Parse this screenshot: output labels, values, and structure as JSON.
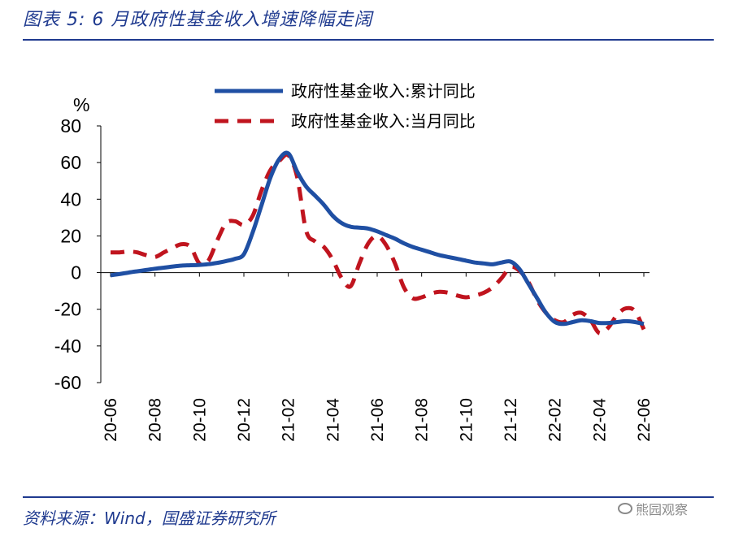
{
  "figure": {
    "title": "图表 5:  6 月政府性基金收入增速降幅走阔",
    "source": "资料来源：Wind，国盛证券研究所",
    "watermark": "熊园观察"
  },
  "colors": {
    "accent": "#1f3a8f",
    "series_cumulative": "#1f4fa3",
    "series_monthly": "#c0141e"
  },
  "chart_data": {
    "type": "line",
    "ylabel": "%",
    "ylim": [
      -60,
      80
    ],
    "yticks": [
      80,
      60,
      40,
      20,
      0,
      -20,
      -40,
      -60
    ],
    "xlim": [
      0,
      24
    ],
    "xticks": [
      {
        "x": 0,
        "label": "20-06"
      },
      {
        "x": 2,
        "label": "20-08"
      },
      {
        "x": 4,
        "label": "20-10"
      },
      {
        "x": 6,
        "label": "20-12"
      },
      {
        "x": 8,
        "label": "21-02"
      },
      {
        "x": 10,
        "label": "21-04"
      },
      {
        "x": 12,
        "label": "21-06"
      },
      {
        "x": 14,
        "label": "21-08"
      },
      {
        "x": 16,
        "label": "21-10"
      },
      {
        "x": 18,
        "label": "21-12"
      },
      {
        "x": 20,
        "label": "22-02"
      },
      {
        "x": 22,
        "label": "22-04"
      },
      {
        "x": 24,
        "label": "22-06"
      }
    ],
    "series": [
      {
        "name": "政府性基金收入:累计同比",
        "style": "solid",
        "x": [
          0,
          0.4,
          0.8,
          1.2,
          1.6,
          2,
          2.4,
          2.8,
          3.2,
          3.6,
          4,
          4.4,
          4.8,
          5.2,
          5.6,
          6,
          6.4,
          6.8,
          7.2,
          7.6,
          8,
          8.4,
          8.8,
          9.2,
          9.6,
          10,
          10.4,
          10.8,
          11.2,
          11.6,
          12,
          12.4,
          12.8,
          13.2,
          13.6,
          14,
          14.4,
          14.8,
          15.2,
          15.6,
          16,
          16.4,
          16.8,
          17.2,
          17.6,
          18,
          18.4,
          18.8,
          19.2,
          19.6,
          20,
          20.4,
          20.8,
          21.2,
          21.6,
          22,
          22.4,
          22.8,
          23.2,
          23.6,
          24
        ],
        "values": [
          -1.5,
          -0.8,
          0,
          0.7,
          1.4,
          2.1,
          2.7,
          3.3,
          3.8,
          4,
          4.2,
          4.6,
          5.3,
          6.3,
          7.5,
          10,
          22,
          37,
          52,
          62,
          65,
          55,
          47,
          42,
          37,
          31,
          27,
          25,
          24.5,
          24,
          22.5,
          20.5,
          18.5,
          16,
          14,
          12.5,
          11,
          9.5,
          8.5,
          7.5,
          6.5,
          5.5,
          5,
          4.5,
          5.5,
          6,
          2,
          -6,
          -14,
          -22,
          -27,
          -28,
          -27,
          -26,
          -26.5,
          -27.5,
          -27.5,
          -27,
          -26.5,
          -27,
          -28
        ]
      },
      {
        "name": "政府性基金收入:当月同比",
        "style": "dashed",
        "x": [
          0,
          0.4,
          0.8,
          1.2,
          1.6,
          2,
          2.4,
          2.8,
          3.2,
          3.6,
          4,
          4.4,
          4.8,
          5.2,
          5.6,
          6,
          6.4,
          6.8,
          7.2,
          7.6,
          8,
          8.4,
          8.8,
          9.2,
          9.6,
          10,
          10.4,
          10.8,
          11.2,
          11.6,
          12,
          12.4,
          12.8,
          13.2,
          13.6,
          14,
          14.4,
          14.8,
          15.2,
          15.6,
          16,
          16.4,
          16.8,
          17.2,
          17.6,
          18,
          18.4,
          18.8,
          19.2,
          19.6,
          20,
          20.4,
          20.8,
          21.2,
          21.6,
          22,
          22.4,
          22.8,
          23.2,
          23.6,
          24
        ],
        "values": [
          11,
          11,
          11.5,
          11,
          9.5,
          8.5,
          11,
          13.5,
          15.5,
          14,
          5,
          6.5,
          17.5,
          27,
          28,
          26,
          31,
          45,
          56,
          61,
          64,
          52,
          23,
          17,
          14,
          7,
          -3,
          -7.5,
          5,
          16,
          20,
          15,
          5,
          -8,
          -14,
          -13.5,
          -11.5,
          -10.5,
          -11,
          -12.5,
          -13.5,
          -12.5,
          -11,
          -8,
          -3,
          3,
          1,
          -5,
          -15,
          -22,
          -26,
          -27,
          -23,
          -22,
          -26,
          -33,
          -30,
          -23,
          -19.5,
          -21,
          -31
        ]
      }
    ],
    "legend_position": "top-right"
  }
}
